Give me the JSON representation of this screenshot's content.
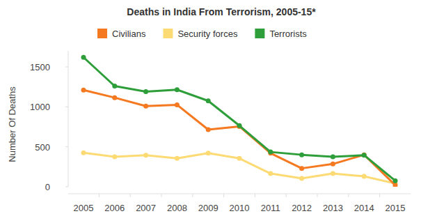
{
  "chart_data": {
    "type": "line",
    "title": "Deaths in India From Terrorism, 2005-15*",
    "y_label": "Number Of Deaths",
    "categories": [
      "2005",
      "2006",
      "2007",
      "2008",
      "2009",
      "2010",
      "2011",
      "2012",
      "2013",
      "2014",
      "2015"
    ],
    "series": [
      {
        "name": "Civilians",
        "color": "#f47920",
        "values": [
          1210,
          1115,
          1010,
          1025,
          715,
          755,
          420,
          230,
          285,
          400,
          20
        ]
      },
      {
        "name": "Security forces",
        "color": "#fcdb74",
        "values": [
          425,
          375,
          395,
          355,
          420,
          355,
          165,
          105,
          165,
          130,
          40
        ]
      },
      {
        "name": "Terrorists",
        "color": "#2e9e3a",
        "values": [
          1620,
          1260,
          1190,
          1215,
          1075,
          765,
          435,
          400,
          375,
          395,
          75
        ]
      }
    ],
    "ylim": [
      0,
      1700
    ],
    "yticks": [
      0,
      500,
      1000,
      1500
    ],
    "grid": false,
    "legend": "top",
    "marker": "circle"
  }
}
